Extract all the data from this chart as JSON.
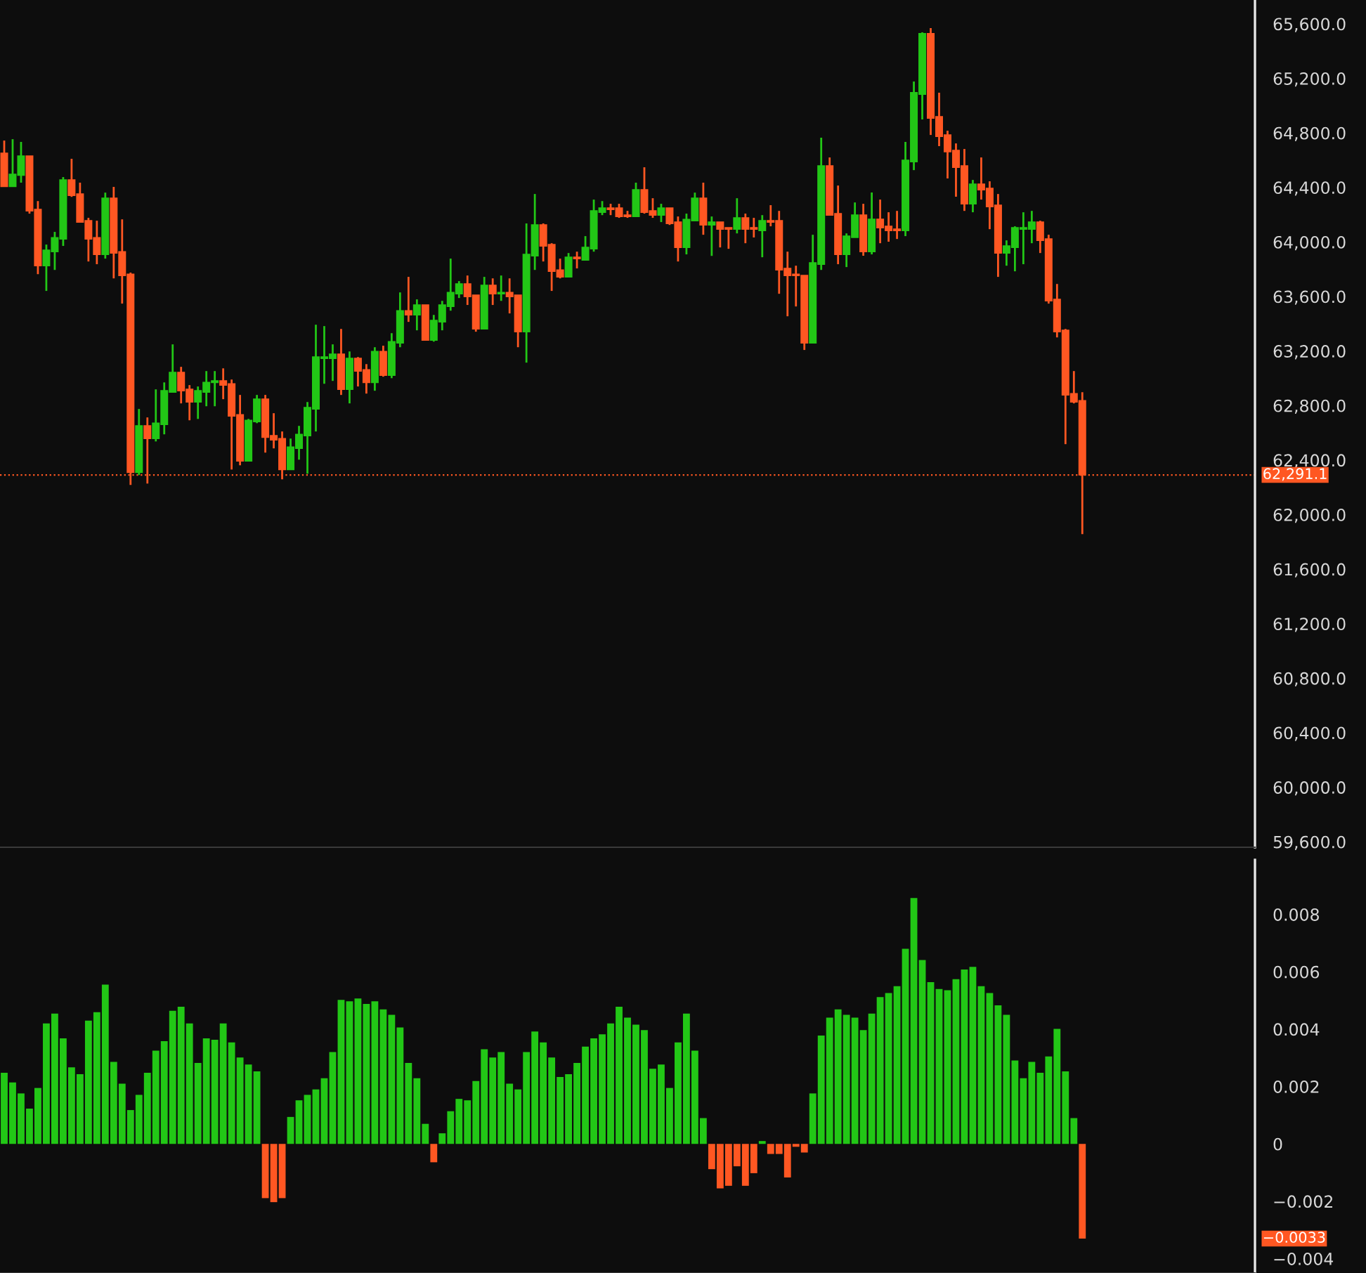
{
  "chart_data": [
    {
      "type": "candlestick",
      "categories": [
        null,
        null,
        null,
        null,
        null,
        null,
        null,
        null,
        null,
        null,
        null,
        null,
        null,
        null,
        null,
        null,
        null,
        null,
        null,
        null,
        null,
        null,
        null,
        null,
        null,
        null,
        null,
        null,
        null,
        null,
        null,
        null,
        null,
        null,
        null,
        null,
        null,
        null,
        null,
        null,
        null,
        null,
        null,
        null,
        null,
        null,
        null,
        null,
        null,
        null,
        null,
        null,
        null,
        null,
        null,
        null,
        null,
        null,
        null,
        null,
        null,
        null,
        null,
        null,
        null,
        null,
        null,
        null,
        null,
        null,
        null,
        null,
        null,
        null,
        null,
        null,
        null,
        null,
        null,
        null,
        null,
        null,
        null,
        null,
        null,
        null,
        null,
        null,
        null,
        null,
        null,
        null,
        null,
        null,
        null,
        null,
        null,
        null,
        null,
        null,
        null,
        null,
        null,
        null,
        null,
        null,
        null,
        null,
        null,
        null,
        null,
        null,
        null,
        null,
        null,
        null,
        null,
        null,
        null,
        null,
        null,
        null,
        null,
        null,
        null,
        null,
        null,
        null,
        null,
        null,
        null,
        null,
        null,
        null,
        null,
        null,
        null,
        null,
        null,
        null,
        null,
        null,
        null,
        null,
        null,
        null,
        null,
        null,
        null
      ],
      "ohlc": [
        [
          64651,
          64744,
          64407,
          64407
        ],
        [
          64407,
          64754,
          64407,
          64496
        ],
        [
          64490,
          64734,
          64435,
          64630
        ],
        [
          64630,
          64630,
          64208,
          64228
        ],
        [
          64239,
          64300,
          63764,
          63826
        ],
        [
          63826,
          63981,
          63641,
          63940
        ],
        [
          63929,
          64074,
          63795,
          64032
        ],
        [
          64022,
          64476,
          63971,
          64455
        ],
        [
          64455,
          64610,
          64331,
          64342
        ],
        [
          64352,
          64435,
          64146,
          64146
        ],
        [
          64156,
          64177,
          63857,
          64022
        ],
        [
          64032,
          64156,
          63837,
          63909
        ],
        [
          63909,
          64362,
          63878,
          64321
        ],
        [
          64321,
          64404,
          63733,
          63919
        ],
        [
          63929,
          64166,
          63548,
          63754
        ],
        [
          63764,
          63775,
          62218,
          62310
        ],
        [
          62310,
          62775,
          62290,
          62651
        ],
        [
          62651,
          62713,
          62228,
          62558
        ],
        [
          62558,
          62919,
          62537,
          62671
        ],
        [
          62661,
          62970,
          62589,
          62909
        ],
        [
          62898,
          63249,
          62898,
          63043
        ],
        [
          63043,
          63084,
          62816,
          62909
        ],
        [
          62919,
          62950,
          62692,
          62826
        ],
        [
          62826,
          62940,
          62702,
          62909
        ],
        [
          62898,
          63053,
          62795,
          62970
        ],
        [
          62970,
          63053,
          62795,
          62981
        ],
        [
          62981,
          63073,
          62847,
          62950
        ],
        [
          62960,
          62991,
          62331,
          62723
        ],
        [
          62733,
          62878,
          62362,
          62393
        ],
        [
          62393,
          62702,
          62393,
          62692
        ],
        [
          62682,
          62878,
          62671,
          62847
        ],
        [
          62847,
          62878,
          62455,
          62568
        ],
        [
          62579,
          62744,
          62486,
          62548
        ],
        [
          62558,
          62610,
          62259,
          62331
        ],
        [
          62331,
          62558,
          62331,
          62496
        ],
        [
          62486,
          62651,
          62403,
          62589
        ],
        [
          62579,
          62826,
          62300,
          62785
        ],
        [
          62775,
          63393,
          62610,
          63156
        ],
        [
          63146,
          63383,
          62960,
          63156
        ],
        [
          63146,
          63249,
          62981,
          63177
        ],
        [
          63177,
          63362,
          62878,
          62919
        ],
        [
          62919,
          63197,
          62816,
          63146
        ],
        [
          63146,
          63156,
          62940,
          63053
        ],
        [
          63063,
          63104,
          62888,
          62970
        ],
        [
          62970,
          63228,
          62909,
          63197
        ],
        [
          63197,
          63239,
          63012,
          63022
        ],
        [
          63022,
          63331,
          63001,
          63269
        ],
        [
          63259,
          63630,
          63228,
          63496
        ],
        [
          63496,
          63744,
          63414,
          63465
        ],
        [
          63465,
          63579,
          63352,
          63538
        ],
        [
          63538,
          63538,
          63280,
          63280
        ],
        [
          63280,
          63465,
          63269,
          63424
        ],
        [
          63414,
          63568,
          63352,
          63538
        ],
        [
          63527,
          63878,
          63496,
          63630
        ],
        [
          63620,
          63713,
          63589,
          63692
        ],
        [
          63692,
          63754,
          63538,
          63599
        ],
        [
          63610,
          63610,
          63342,
          63362
        ],
        [
          63362,
          63744,
          63362,
          63682
        ],
        [
          63682,
          63733,
          63538,
          63620
        ],
        [
          63620,
          63754,
          63568,
          63630
        ],
        [
          63630,
          63733,
          63476,
          63599
        ],
        [
          63610,
          63610,
          63228,
          63342
        ],
        [
          63342,
          64136,
          63115,
          63909
        ],
        [
          63898,
          64352,
          63795,
          64125
        ],
        [
          64125,
          64136,
          63857,
          63971
        ],
        [
          63981,
          63991,
          63641,
          63785
        ],
        [
          63795,
          63878,
          63733,
          63744
        ],
        [
          63744,
          63919,
          63744,
          63888
        ],
        [
          63888,
          63929,
          63806,
          63878
        ],
        [
          63867,
          64043,
          63867,
          63960
        ],
        [
          63950,
          64311,
          63929,
          64228
        ],
        [
          64218,
          64300,
          64197,
          64249
        ],
        [
          64249,
          64280,
          64197,
          64239
        ],
        [
          64249,
          64280,
          64177,
          64187
        ],
        [
          64197,
          64228,
          64177,
          64187
        ],
        [
          64187,
          64435,
          64187,
          64383
        ],
        [
          64383,
          64548,
          64208,
          64218
        ],
        [
          64228,
          64321,
          64177,
          64197
        ],
        [
          64197,
          64280,
          64146,
          64249
        ],
        [
          64249,
          64249,
          64125,
          64136
        ],
        [
          64146,
          64187,
          63857,
          63960
        ],
        [
          63960,
          64208,
          63909,
          64166
        ],
        [
          64156,
          64362,
          64156,
          64321
        ],
        [
          64321,
          64435,
          64053,
          64125
        ],
        [
          64125,
          64187,
          63898,
          64146
        ],
        [
          64146,
          64146,
          63960,
          64094
        ],
        [
          64105,
          64105,
          63950,
          64094
        ],
        [
          64094,
          64321,
          64063,
          64177
        ],
        [
          64177,
          64208,
          63991,
          64094
        ],
        [
          64105,
          64177,
          64033,
          64094
        ],
        [
          64084,
          64197,
          63888,
          64156
        ],
        [
          64156,
          64270,
          64115,
          64146
        ],
        [
          64156,
          64228,
          63620,
          63795
        ],
        [
          63806,
          63929,
          63455,
          63754
        ],
        [
          63764,
          63826,
          63527,
          63754
        ],
        [
          63754,
          63754,
          63208,
          63259
        ],
        [
          63259,
          64053,
          63259,
          63847
        ],
        [
          63837,
          64765,
          63795,
          64558
        ],
        [
          64558,
          64620,
          64197,
          64197
        ],
        [
          64208,
          64414,
          63837,
          63909
        ],
        [
          63909,
          64063,
          63816,
          64043
        ],
        [
          64033,
          64290,
          64033,
          64197
        ],
        [
          64197,
          64280,
          63899,
          63929
        ],
        [
          63929,
          64363,
          63909,
          64167
        ],
        [
          64167,
          64311,
          63991,
          64105
        ],
        [
          64115,
          64218,
          64002,
          64084
        ],
        [
          64094,
          64228,
          64022,
          64084
        ],
        [
          64084,
          64734,
          64043,
          64600
        ],
        [
          64589,
          65177,
          64527,
          65095
        ],
        [
          65084,
          65538,
          64899,
          65528
        ],
        [
          65528,
          65569,
          64785,
          64909
        ],
        [
          64919,
          65095,
          64703,
          64775
        ],
        [
          64785,
          64816,
          64466,
          64662
        ],
        [
          64672,
          64723,
          64332,
          64548
        ],
        [
          64558,
          64682,
          64228,
          64280
        ],
        [
          64280,
          64455,
          64218,
          64424
        ],
        [
          64424,
          64620,
          64311,
          64383
        ],
        [
          64393,
          64445,
          64094,
          64259
        ],
        [
          64270,
          64352,
          63744,
          63919
        ],
        [
          63919,
          64012,
          63826,
          63971
        ],
        [
          63960,
          64115,
          63785,
          64105
        ],
        [
          64094,
          64218,
          63837,
          64105
        ],
        [
          64094,
          64228,
          63991,
          64146
        ],
        [
          64146,
          64156,
          63919,
          64012
        ],
        [
          64022,
          64053,
          63548,
          63569
        ],
        [
          63579,
          63692,
          63300,
          63342
        ],
        [
          63352,
          63362,
          62517,
          62878
        ],
        [
          62888,
          63053,
          62816,
          62826
        ],
        [
          62836,
          62898,
          61857,
          62291.1
        ],
        null,
        null,
        null,
        null,
        null,
        null,
        null,
        null,
        null,
        null,
        null,
        null,
        null,
        null,
        null,
        null,
        null,
        null,
        null,
        null
      ],
      "colors": [
        "#ff5722",
        "#22c716",
        "#22c716",
        "#ff5722",
        "#ff5722",
        "#22c716",
        "#22c716",
        "#22c716",
        "#ff5722",
        "#ff5722",
        "#ff5722",
        "#ff5722",
        "#22c716",
        "#ff5722",
        "#ff5722",
        "#ff5722",
        "#22c716",
        "#ff5722",
        "#22c716",
        "#22c716",
        "#22c716",
        "#ff5722",
        "#ff5722",
        "#22c716",
        "#22c716",
        "#22c716",
        "#ff5722",
        "#ff5722",
        "#ff5722",
        "#22c716",
        "#22c716",
        "#ff5722",
        "#ff5722",
        "#ff5722",
        "#22c716",
        "#22c716",
        "#22c716",
        "#22c716",
        "#22c716",
        "#22c716",
        "#ff5722",
        "#22c716",
        "#ff5722",
        "#ff5722",
        "#22c716",
        "#ff5722",
        "#22c716",
        "#22c716",
        "#ff5722",
        "#22c716",
        "#ff5722",
        "#22c716",
        "#22c716",
        "#22c716",
        "#22c716",
        "#ff5722",
        "#ff5722",
        "#22c716",
        "#ff5722",
        "#22c716",
        "#ff5722",
        "#ff5722",
        "#22c716",
        "#22c716",
        "#ff5722",
        "#ff5722",
        "#ff5722",
        "#22c716",
        "#ff5722",
        "#22c716",
        "#22c716",
        "#22c716",
        "#ff5722",
        "#ff5722",
        "#ff5722",
        "#22c716",
        "#ff5722",
        "#ff5722",
        "#22c716",
        "#ff5722",
        "#ff5722",
        "#22c716",
        "#22c716",
        "#ff5722",
        "#22c716",
        "#ff5722",
        "#ff5722",
        "#22c716",
        "#ff5722",
        "#ff5722",
        "#22c716",
        "#ff5722",
        "#ff5722",
        "#ff5722",
        "#ff5722",
        "#ff5722",
        "#22c716",
        "#22c716",
        "#ff5722",
        "#ff5722",
        "#22c716",
        "#22c716",
        "#ff5722",
        "#22c716",
        "#ff5722",
        "#ff5722",
        "#ff5722",
        "#22c716",
        "#22c716",
        "#22c716",
        "#ff5722",
        "#ff5722",
        "#ff5722",
        "#ff5722",
        "#ff5722",
        "#22c716",
        "#ff5722",
        "#ff5722",
        "#ff5722",
        "#22c716",
        "#22c716",
        "#22c716",
        "#22c716",
        "#ff5722",
        "#ff5722",
        "#ff5722",
        "#ff5722",
        "#ff5722",
        "#ff5722",
        null,
        null,
        null,
        null,
        null,
        null,
        null,
        null,
        null,
        null,
        null,
        null,
        null,
        null,
        null,
        null,
        null,
        null,
        null,
        null
      ],
      "ylim": [
        59560,
        65775
      ],
      "yticks": [
        {
          "value": 59600,
          "label": "59,600.0"
        },
        {
          "value": 60000,
          "label": "60,000.0"
        },
        {
          "value": 60400,
          "label": "60,400.0"
        },
        {
          "value": 60800,
          "label": "60,800.0"
        },
        {
          "value": 61200,
          "label": "61,200.0"
        },
        {
          "value": 61600,
          "label": "61,600.0"
        },
        {
          "value": 62000,
          "label": "62,000.0"
        },
        {
          "value": 62400,
          "label": "62,400.0"
        },
        {
          "value": 62800,
          "label": "62,800.0"
        },
        {
          "value": 63200,
          "label": "63,200.0"
        },
        {
          "value": 63600,
          "label": "63,600.0"
        },
        {
          "value": 64000,
          "label": "64,000.0"
        },
        {
          "value": 64400,
          "label": "64,400.0"
        },
        {
          "value": 64800,
          "label": "64,800.0"
        },
        {
          "value": 65200,
          "label": "65,200.0"
        },
        {
          "value": 65600,
          "label": "65,600.0"
        }
      ],
      "ref_lines": [
        {
          "axis": "y",
          "value": 62291.1,
          "label": "62,291.1",
          "color": "#ff5722",
          "line_style": "dotted"
        }
      ],
      "tick_labels": "y"
    },
    {
      "type": "bar",
      "categories": [
        null,
        null,
        null,
        null,
        null,
        null,
        null,
        null,
        null,
        null,
        null,
        null,
        null,
        null,
        null,
        null,
        null,
        null,
        null,
        null,
        null,
        null,
        null,
        null,
        null,
        null,
        null,
        null,
        null,
        null,
        null,
        null,
        null,
        null,
        null,
        null,
        null,
        null,
        null,
        null,
        null,
        null,
        null,
        null,
        null,
        null,
        null,
        null,
        null,
        null,
        null,
        null,
        null,
        null,
        null,
        null,
        null,
        null,
        null,
        null,
        null,
        null,
        null,
        null,
        null,
        null,
        null,
        null,
        null,
        null,
        null,
        null,
        null,
        null,
        null,
        null,
        null,
        null,
        null,
        null,
        null,
        null,
        null,
        null,
        null,
        null,
        null,
        null,
        null,
        null,
        null,
        null,
        null,
        null,
        null,
        null,
        null,
        null,
        null,
        null,
        null,
        null,
        null,
        null,
        null,
        null,
        null,
        null,
        null,
        null,
        null,
        null,
        null,
        null,
        null,
        null,
        null,
        null,
        null,
        null,
        null,
        null,
        null,
        null,
        null,
        null,
        null,
        null,
        null,
        null,
        null,
        null,
        null,
        null,
        null,
        null,
        null,
        null,
        null,
        null,
        null,
        null,
        null,
        null,
        null,
        null,
        null,
        null,
        null
      ],
      "values": [
        0.00248,
        0.00214,
        0.00176,
        0.00123,
        0.00195,
        0.0042,
        0.00454,
        0.00368,
        0.00267,
        0.00243,
        0.0043,
        0.00459,
        0.00555,
        0.00286,
        0.0021,
        0.00118,
        0.00171,
        0.00248,
        0.00325,
        0.00358,
        0.00464,
        0.00478,
        0.0042,
        0.00282,
        0.00368,
        0.00363,
        0.0042,
        0.00354,
        0.00301,
        0.00277,
        0.00253,
        -0.00189,
        -0.00203,
        -0.00189,
        0.00094,
        0.00152,
        0.00171,
        0.0019,
        0.00229,
        0.0032,
        0.00502,
        0.00497,
        0.00507,
        0.00488,
        0.00497,
        0.00469,
        0.0045,
        0.00406,
        0.00282,
        0.00229,
        0.0007,
        -0.00064,
        0.00037,
        0.00114,
        0.00157,
        0.00152,
        0.00219,
        0.0033,
        0.00301,
        0.0032,
        0.0021,
        0.0019,
        0.0032,
        0.00392,
        0.00354,
        0.00301,
        0.00233,
        0.00243,
        0.00282,
        0.00339,
        0.00368,
        0.00382,
        0.0042,
        0.00478,
        0.0044,
        0.00416,
        0.00397,
        0.00262,
        0.00277,
        0.00195,
        0.00354,
        0.00454,
        0.00325,
        0.0009,
        -0.00088,
        -0.00155,
        -0.00146,
        -0.00078,
        -0.00146,
        -0.00102,
        0.0001,
        -0.00035,
        -0.00035,
        -0.00117,
        -0.0001,
        -0.0003,
        0.00176,
        0.00378,
        0.0044,
        0.00469,
        0.0045,
        0.0044,
        0.00397,
        0.00454,
        0.00512,
        0.00526,
        0.0055,
        0.0068,
        0.00857,
        0.00641,
        0.00564,
        0.0054,
        0.00536,
        0.00574,
        0.00608,
        0.00617,
        0.0055,
        0.00526,
        0.00483,
        0.0045,
        0.00291,
        0.00229,
        0.00286,
        0.00248,
        0.00305,
        0.00401,
        0.00253,
        0.0009,
        -0.0033,
        null,
        null,
        null,
        null,
        null,
        null,
        null,
        null,
        null,
        null,
        null,
        null,
        null,
        null,
        null,
        null,
        null,
        null,
        null,
        null
      ],
      "colors": [
        "#22c716",
        "#22c716",
        "#22c716",
        "#22c716",
        "#22c716",
        "#22c716",
        "#22c716",
        "#22c716",
        "#22c716",
        "#22c716",
        "#22c716",
        "#22c716",
        "#22c716",
        "#22c716",
        "#22c716",
        "#22c716",
        "#22c716",
        "#22c716",
        "#22c716",
        "#22c716",
        "#22c716",
        "#22c716",
        "#22c716",
        "#22c716",
        "#22c716",
        "#22c716",
        "#22c716",
        "#22c716",
        "#22c716",
        "#22c716",
        "#22c716",
        "#ff5722",
        "#ff5722",
        "#ff5722",
        "#22c716",
        "#22c716",
        "#22c716",
        "#22c716",
        "#22c716",
        "#22c716",
        "#22c716",
        "#22c716",
        "#22c716",
        "#22c716",
        "#22c716",
        "#22c716",
        "#22c716",
        "#22c716",
        "#22c716",
        "#22c716",
        "#22c716",
        "#ff5722",
        "#22c716",
        "#22c716",
        "#22c716",
        "#22c716",
        "#22c716",
        "#22c716",
        "#22c716",
        "#22c716",
        "#22c716",
        "#22c716",
        "#22c716",
        "#22c716",
        "#22c716",
        "#22c716",
        "#22c716",
        "#22c716",
        "#22c716",
        "#22c716",
        "#22c716",
        "#22c716",
        "#22c716",
        "#22c716",
        "#22c716",
        "#22c716",
        "#22c716",
        "#22c716",
        "#22c716",
        "#22c716",
        "#22c716",
        "#22c716",
        "#22c716",
        "#22c716",
        "#ff5722",
        "#ff5722",
        "#ff5722",
        "#ff5722",
        "#ff5722",
        "#ff5722",
        "#22c716",
        "#ff5722",
        "#ff5722",
        "#ff5722",
        "#ff5722",
        "#ff5722",
        "#22c716",
        "#22c716",
        "#22c716",
        "#22c716",
        "#22c716",
        "#22c716",
        "#22c716",
        "#22c716",
        "#22c716",
        "#22c716",
        "#22c716",
        "#22c716",
        "#22c716",
        "#22c716",
        "#22c716",
        "#22c716",
        "#22c716",
        "#22c716",
        "#22c716",
        "#22c716",
        "#22c716",
        "#22c716",
        "#22c716",
        "#22c716",
        "#22c716",
        "#22c716",
        "#22c716",
        "#22c716",
        "#22c716",
        "#22c716",
        "#22c716",
        "#22c716",
        "#ff5722",
        null,
        null,
        null,
        null,
        null,
        null,
        null,
        null,
        null,
        null,
        null,
        null,
        null,
        null,
        null,
        null,
        null,
        null,
        null,
        null
      ],
      "ylim": [
        -0.0045,
        0.0099
      ],
      "yticks": [
        {
          "value": -0.004,
          "label": "−0.004"
        },
        {
          "value": -0.002,
          "label": "−0.002"
        },
        0,
        0.002,
        0.004,
        0.006,
        0.008
      ],
      "annotations": [
        "−0.0033"
      ],
      "tick_labels": "y"
    }
  ]
}
